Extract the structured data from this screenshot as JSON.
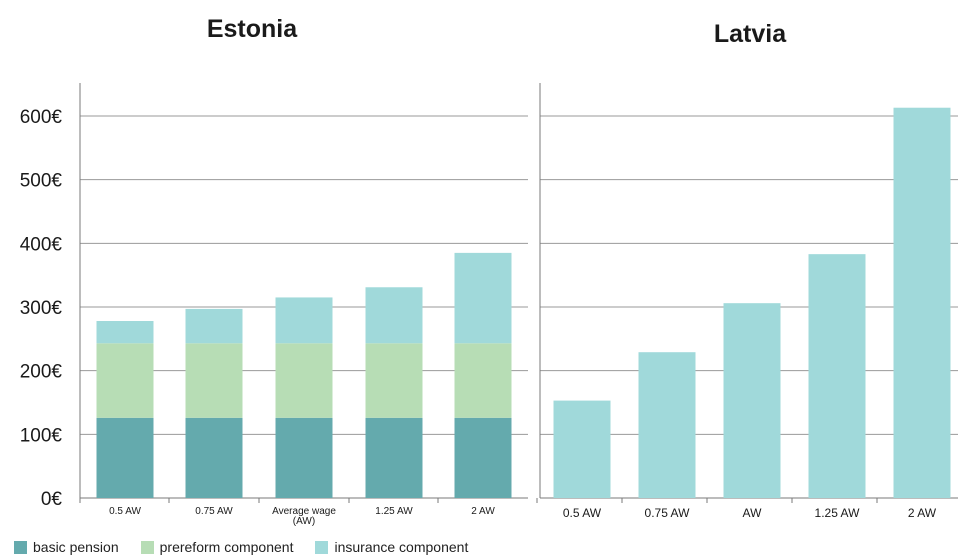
{
  "chart_data": [
    {
      "type": "bar",
      "stacked": true,
      "title": "Estonia",
      "categories": [
        "0.5 AW",
        "0.75 AW",
        "Average wage (AW)",
        "1.25 AW",
        "2 AW"
      ],
      "series": [
        {
          "name": "basic pension",
          "values": [
            126,
            126,
            126,
            126,
            126
          ]
        },
        {
          "name": "prereform component",
          "values": [
            117,
            117,
            117,
            117,
            117
          ]
        },
        {
          "name": "insurance component",
          "values": [
            35,
            54,
            72,
            88,
            142
          ]
        }
      ],
      "y_ticks": [
        "0€",
        "100€",
        "200€",
        "300€",
        "400€",
        "500€",
        "600€"
      ],
      "ylim": [
        0,
        600
      ],
      "grid": true
    },
    {
      "type": "bar",
      "title": "Latvia",
      "categories": [
        "0.5 AW",
        "0.75 AW",
        "AW",
        "1.25 AW",
        "2 AW"
      ],
      "series": [
        {
          "name": "insurance component",
          "values": [
            153,
            229,
            306,
            383,
            613
          ]
        }
      ],
      "ylim": [
        0,
        600
      ],
      "grid": true
    }
  ],
  "legend": [
    {
      "label": "basic pension",
      "color": "#64aaad"
    },
    {
      "label": "prereform component",
      "color": "#b7ddb5"
    },
    {
      "label": "insurance component",
      "color": "#a0d9da"
    }
  ],
  "colors": {
    "basic pension": "#64aaad",
    "prereform component": "#b7ddb5",
    "insurance component": "#a0d9da"
  }
}
